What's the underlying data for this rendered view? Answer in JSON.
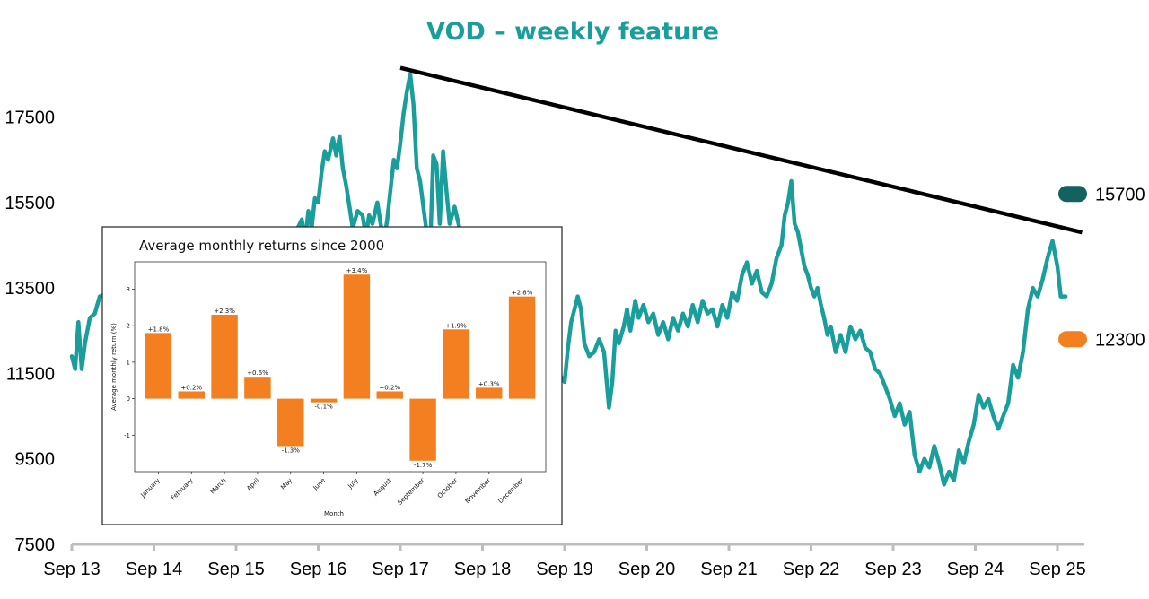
{
  "chart_data": [
    {
      "type": "line",
      "title": "VOD – weekly feature",
      "ylim": [
        7500,
        19000
      ],
      "y_ticks": [
        7500,
        9500,
        11500,
        13500,
        15500,
        17500
      ],
      "x_ticks": [
        "Sep 13",
        "Sep 14",
        "Sep 15",
        "Sep 16",
        "Sep 17",
        "Sep 18",
        "Sep 19",
        "Sep 20",
        "Sep 21",
        "Sep 22",
        "Sep 23",
        "Sep 24",
        "Sep 25"
      ],
      "series": [
        {
          "name": "VOD",
          "color": "#1a9e9c",
          "points": [
            [
              2013.0,
              11900
            ],
            [
              2013.04,
              11600
            ],
            [
              2013.08,
              12700
            ],
            [
              2013.12,
              11600
            ],
            [
              2013.16,
              12200
            ],
            [
              2013.22,
              12800
            ],
            [
              2013.28,
              12900
            ],
            [
              2013.34,
              13300
            ],
            [
              2015.75,
              14900
            ],
            [
              2015.8,
              15100
            ],
            [
              2015.84,
              14600
            ],
            [
              2015.88,
              15300
            ],
            [
              2015.92,
              14900
            ],
            [
              2015.96,
              15600
            ],
            [
              2016.0,
              15500
            ],
            [
              2016.04,
              16200
            ],
            [
              2016.08,
              16700
            ],
            [
              2016.12,
              16500
            ],
            [
              2016.18,
              17000
            ],
            [
              2016.22,
              16600
            ],
            [
              2016.26,
              17050
            ],
            [
              2016.3,
              16300
            ],
            [
              2016.34,
              15900
            ],
            [
              2016.38,
              15400
            ],
            [
              2016.42,
              14900
            ],
            [
              2016.48,
              15300
            ],
            [
              2016.54,
              15200
            ],
            [
              2016.58,
              14700
            ],
            [
              2016.62,
              15200
            ],
            [
              2016.66,
              15000
            ],
            [
              2016.72,
              15500
            ],
            [
              2016.76,
              15000
            ],
            [
              2016.8,
              14600
            ],
            [
              2016.84,
              15100
            ],
            [
              2016.88,
              15800
            ],
            [
              2016.92,
              16500
            ],
            [
              2016.96,
              16300
            ],
            [
              2017.0,
              16900
            ],
            [
              2017.04,
              17600
            ],
            [
              2017.08,
              18100
            ],
            [
              2017.12,
              18500
            ],
            [
              2017.16,
              17800
            ],
            [
              2017.2,
              16300
            ],
            [
              2017.24,
              16000
            ],
            [
              2017.28,
              15400
            ],
            [
              2017.32,
              14800
            ],
            [
              2017.36,
              14200
            ],
            [
              2017.4,
              16600
            ],
            [
              2017.44,
              16400
            ],
            [
              2017.48,
              15000
            ],
            [
              2017.52,
              16700
            ],
            [
              2017.56,
              15800
            ],
            [
              2017.6,
              15000
            ],
            [
              2017.66,
              15400
            ],
            [
              2017.72,
              14900
            ],
            [
              2017.78,
              14600
            ],
            [
              2019.0,
              11300
            ],
            [
              2019.04,
              12100
            ],
            [
              2019.08,
              12700
            ],
            [
              2019.12,
              13000
            ],
            [
              2019.16,
              13300
            ],
            [
              2019.2,
              13000
            ],
            [
              2019.24,
              12200
            ],
            [
              2019.3,
              11900
            ],
            [
              2019.36,
              12000
            ],
            [
              2019.42,
              12300
            ],
            [
              2019.48,
              12000
            ],
            [
              2019.54,
              10700
            ],
            [
              2019.58,
              11300
            ],
            [
              2019.62,
              12500
            ],
            [
              2019.66,
              12200
            ],
            [
              2019.72,
              12600
            ],
            [
              2019.76,
              13000
            ],
            [
              2019.8,
              12500
            ],
            [
              2019.86,
              13200
            ],
            [
              2019.9,
              12800
            ],
            [
              2019.96,
              13100
            ],
            [
              2020.02,
              12700
            ],
            [
              2020.08,
              12900
            ],
            [
              2020.14,
              12400
            ],
            [
              2020.2,
              12700
            ],
            [
              2020.26,
              12300
            ],
            [
              2020.32,
              12800
            ],
            [
              2020.38,
              12500
            ],
            [
              2020.44,
              12900
            ],
            [
              2020.5,
              12600
            ],
            [
              2020.56,
              13100
            ],
            [
              2020.62,
              12700
            ],
            [
              2020.68,
              13200
            ],
            [
              2020.74,
              12900
            ],
            [
              2020.8,
              13000
            ],
            [
              2020.86,
              12600
            ],
            [
              2020.92,
              13100
            ],
            [
              2020.98,
              12800
            ],
            [
              2021.04,
              13400
            ],
            [
              2021.1,
              13200
            ],
            [
              2021.16,
              13800
            ],
            [
              2021.22,
              14100
            ],
            [
              2021.28,
              13600
            ],
            [
              2021.34,
              13900
            ],
            [
              2021.4,
              13400
            ],
            [
              2021.46,
              13300
            ],
            [
              2021.52,
              13600
            ],
            [
              2021.58,
              14200
            ],
            [
              2021.64,
              14500
            ],
            [
              2021.68,
              15200
            ],
            [
              2021.72,
              15500
            ],
            [
              2021.76,
              16000
            ],
            [
              2021.8,
              15000
            ],
            [
              2021.84,
              14800
            ],
            [
              2021.88,
              14400
            ],
            [
              2021.92,
              14000
            ],
            [
              2021.96,
              13800
            ],
            [
              2022.0,
              13500
            ],
            [
              2022.04,
              13300
            ],
            [
              2022.08,
              13500
            ],
            [
              2022.12,
              13100
            ],
            [
              2022.16,
              12800
            ],
            [
              2022.2,
              12400
            ],
            [
              2022.24,
              12600
            ],
            [
              2022.3,
              12000
            ],
            [
              2022.36,
              12400
            ],
            [
              2022.42,
              12000
            ],
            [
              2022.48,
              12600
            ],
            [
              2022.54,
              12300
            ],
            [
              2022.6,
              12500
            ],
            [
              2022.66,
              12100
            ],
            [
              2022.72,
              12000
            ],
            [
              2022.78,
              11600
            ],
            [
              2022.84,
              11500
            ],
            [
              2022.9,
              11200
            ],
            [
              2022.96,
              10900
            ],
            [
              2023.02,
              10500
            ],
            [
              2023.08,
              10800
            ],
            [
              2023.14,
              10300
            ],
            [
              2023.2,
              10600
            ],
            [
              2023.26,
              9600
            ],
            [
              2023.32,
              9200
            ],
            [
              2023.38,
              9500
            ],
            [
              2023.44,
              9300
            ],
            [
              2023.5,
              9800
            ],
            [
              2023.56,
              9400
            ],
            [
              2023.62,
              8900
            ],
            [
              2023.68,
              9200
            ],
            [
              2023.74,
              9000
            ],
            [
              2023.8,
              9700
            ],
            [
              2023.86,
              9400
            ],
            [
              2023.92,
              9900
            ],
            [
              2023.98,
              10300
            ],
            [
              2024.04,
              11000
            ],
            [
              2024.1,
              10700
            ],
            [
              2024.16,
              10900
            ],
            [
              2024.22,
              10500
            ],
            [
              2024.28,
              10200
            ],
            [
              2024.34,
              10500
            ],
            [
              2024.4,
              10800
            ],
            [
              2024.46,
              11700
            ],
            [
              2024.52,
              11400
            ],
            [
              2024.58,
              12000
            ],
            [
              2024.64,
              13000
            ],
            [
              2024.7,
              13500
            ],
            [
              2024.76,
              13300
            ],
            [
              2024.82,
              13700
            ],
            [
              2024.88,
              14200
            ],
            [
              2024.94,
              14600
            ],
            [
              2025.0,
              14000
            ],
            [
              2025.04,
              13300
            ],
            [
              2025.1,
              13300
            ]
          ]
        }
      ],
      "trendline": {
        "from": [
          2017.0,
          18650
        ],
        "to": [
          2025.3,
          14800
        ],
        "color": "#000000"
      },
      "markers": [
        {
          "value": 15700,
          "label": "15700",
          "color": "#13625f"
        },
        {
          "value": 12300,
          "label": "12300",
          "color": "#f47f20"
        }
      ],
      "title_color": "#1a9e9c"
    },
    {
      "type": "bar",
      "title": "Average monthly returns since 2000",
      "xlabel": "Month",
      "ylabel": "Average monthly return (%)",
      "ylim": [
        -2.0,
        3.75
      ],
      "y_ticks": [
        -1,
        0,
        1,
        2,
        3
      ],
      "categories": [
        "January",
        "February",
        "March",
        "April",
        "May",
        "June",
        "July",
        "August",
        "September",
        "October",
        "November",
        "December"
      ],
      "values": [
        1.8,
        0.2,
        2.3,
        0.6,
        -1.3,
        -0.1,
        3.4,
        0.2,
        -1.7,
        1.9,
        0.3,
        2.8
      ],
      "data_labels": [
        "+1.8%",
        "+0.2%",
        "+2.3%",
        "+0.6%",
        "-1.3%",
        "-0.1%",
        "+3.4%",
        "+0.2%",
        "-1.7%",
        "+1.9%",
        "+0.3%",
        "+2.8%"
      ],
      "bar_color": "#f47f20"
    }
  ]
}
